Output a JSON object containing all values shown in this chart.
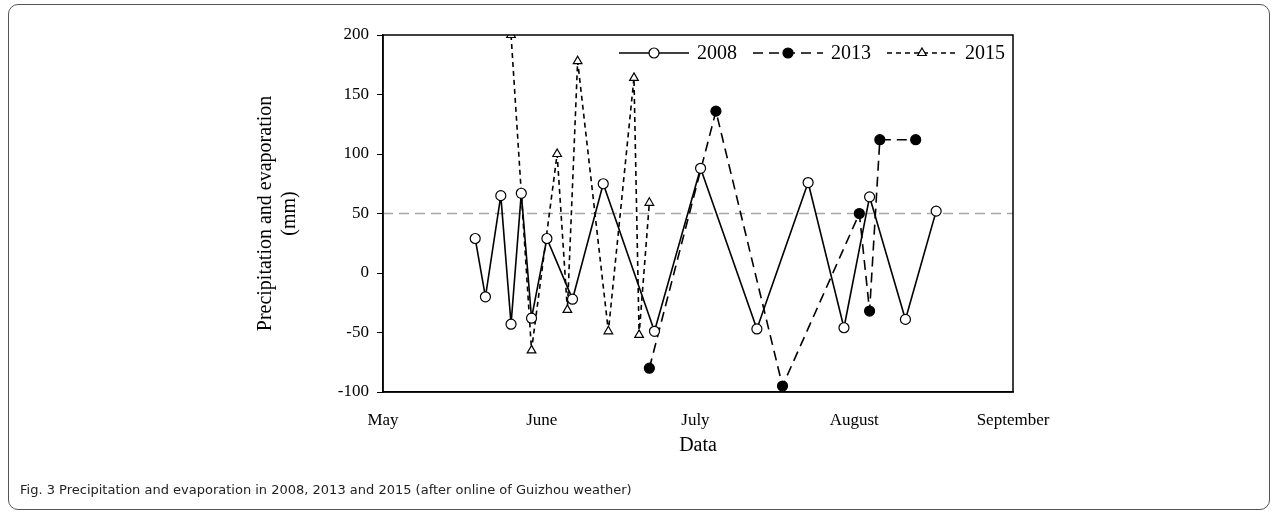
{
  "chart_data": {
    "type": "line",
    "xlabel": "Data",
    "ylabel": "Precipitation and evaporation (mm)",
    "xlim": [
      "--05-01",
      "--09-01"
    ],
    "xticks": [
      {
        "value": "--05-01",
        "label": "May"
      },
      {
        "value": "--06-01",
        "label": "June"
      },
      {
        "value": "--07-01",
        "label": "July"
      },
      {
        "value": "--08-01",
        "label": "August"
      },
      {
        "value": "--09-01",
        "label": "September"
      }
    ],
    "ylim": [
      -100,
      200
    ],
    "yticks": [
      -100,
      -50,
      0,
      50,
      100,
      150,
      200
    ],
    "grid": false,
    "legend": "top right",
    "ref_lines": [
      {
        "axis": "y",
        "value": 50,
        "color": "#a6a6a6",
        "line_style": "dashed"
      }
    ],
    "series": [
      {
        "name": "2008",
        "color": "#000000",
        "marker": "circle",
        "line_style": "solid",
        "x": [
          "--05-19",
          "--05-21",
          "--05-24",
          "--05-26",
          "--05-28",
          "--05-30",
          "--06-02",
          "--06-07",
          "--06-13",
          "--06-23",
          "--07-02",
          "--07-13",
          "--07-23",
          "--07-30",
          "--08-04",
          "--08-11",
          "--08-17"
        ],
        "values": [
          29,
          -20,
          65,
          -43,
          67,
          -38,
          29,
          -22,
          75,
          -49,
          88,
          -47,
          76,
          -46,
          64,
          -39,
          52
        ]
      },
      {
        "name": "2013",
        "color": "#000000",
        "marker": "circle",
        "line_style": "dashed",
        "x": [
          "--06-22",
          "--07-05",
          "--07-18",
          "--08-02",
          "--08-04",
          "--08-06",
          "--08-13"
        ],
        "values": [
          -80,
          136,
          -95,
          50,
          -32,
          112,
          112
        ]
      },
      {
        "name": "2015",
        "color": "#000000",
        "marker": "triangle",
        "line_style": "dotted",
        "x": [
          "--05-26",
          "--05-30",
          "--06-04",
          "--06-06",
          "--06-08",
          "--06-14",
          "--06-19",
          "--06-20",
          "--06-22"
        ],
        "values": [
          200,
          -65,
          100,
          -31,
          178,
          -49,
          164,
          -52,
          59
        ]
      }
    ],
    "annotations": [
      "Fig. 3 Precipitation and evaporation in 2008, 2013 and 2015 (after online of Guizhou weather)"
    ]
  }
}
